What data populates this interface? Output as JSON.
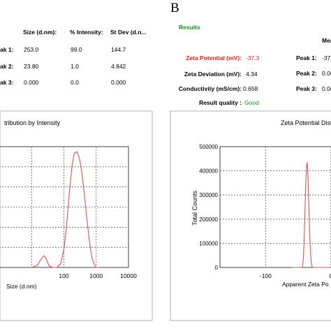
{
  "panel_b_letter": "B",
  "left_table": {
    "headers": [
      "Size (d.nm):",
      "% Intensity:",
      "St Dev (d.n..."
    ],
    "rows": [
      {
        "label": "ak 1:",
        "size": "253.0",
        "intensity": "99.0",
        "stdev": "144.7"
      },
      {
        "label": "ak 2:",
        "size": "23.80",
        "intensity": "1.0",
        "stdev": "4.842"
      },
      {
        "label": "ak 3:",
        "size": "0.000",
        "intensity": "0.0",
        "stdev": "0.000"
      }
    ]
  },
  "right_results": {
    "title": "Results",
    "mean_header": "Mea",
    "rows": [
      {
        "label": "Zeta Potential (mV):",
        "value": "-37.3"
      },
      {
        "label": "Zeta Deviation (mV):",
        "value": "4.34"
      },
      {
        "label": "Conductivity (mS/cm):",
        "value": "0.658"
      },
      {
        "label": "Result quality :",
        "value": "Good"
      }
    ],
    "peaks": [
      {
        "label": "Peak 1:",
        "value": "-37."
      },
      {
        "label": "Peak 2:",
        "value": "0.0("
      },
      {
        "label": "Peak 3:",
        "value": "0.0("
      }
    ]
  },
  "colors": {
    "curve": "#e05050",
    "accent_green": "#1a8c1a",
    "accent_red": "#e02020"
  },
  "chart_data": [
    {
      "type": "line",
      "title": "tribution by Intensity",
      "xlabel": "Size (d.nm)",
      "ylabel": "",
      "x_scale": "log",
      "xlim": [
        1,
        10000
      ],
      "x_ticks": [
        "100",
        "1000",
        "10000"
      ],
      "x_tick_values": [
        100,
        1000,
        10000
      ],
      "grid": true,
      "series": [
        {
          "x": [
            10,
            15,
            20,
            24,
            28,
            35,
            45,
            60,
            80,
            100,
            120,
            150,
            180,
            210,
            253,
            300,
            360,
            430,
            520,
            620,
            750,
            900,
            1000,
            1200
          ],
          "y": [
            0,
            0.3,
            1.2,
            1.6,
            1.2,
            0.2,
            0,
            0,
            0.5,
            2.5,
            5.5,
            10.5,
            14.0,
            15.6,
            15.8,
            15.0,
            13.0,
            10.0,
            6.5,
            3.5,
            1.2,
            0.3,
            0,
            0
          ]
        }
      ]
    },
    {
      "type": "line",
      "title": "Zeta Potential Distrib",
      "xlabel": "Apparent Zeta Po",
      "ylabel": "Total Counts",
      "y_ticks": [
        "500000",
        "400000",
        "300000",
        "200000",
        "100000",
        "0"
      ],
      "y_tick_values": [
        500000,
        400000,
        300000,
        200000,
        100000,
        0
      ],
      "ylim": [
        0,
        500000
      ],
      "x_ticks": [
        "-100",
        "0"
      ],
      "x_tick_values": [
        -100,
        0
      ],
      "xlim": [
        -170,
        12
      ],
      "grid": true,
      "series": [
        {
          "x": [
            -60,
            -45,
            -44,
            -43,
            -42,
            -41,
            -40,
            -39,
            -38,
            -37,
            -36.5,
            -36,
            -35,
            -34,
            -33,
            -32,
            -31,
            -30,
            -29,
            -28,
            -27,
            -20,
            10
          ],
          "y": [
            0,
            0,
            2000,
            12000,
            45000,
            110000,
            200000,
            300000,
            380000,
            425000,
            435000,
            425000,
            370000,
            280000,
            190000,
            110000,
            55000,
            20000,
            5000,
            1000,
            0,
            0,
            0
          ]
        }
      ]
    }
  ]
}
